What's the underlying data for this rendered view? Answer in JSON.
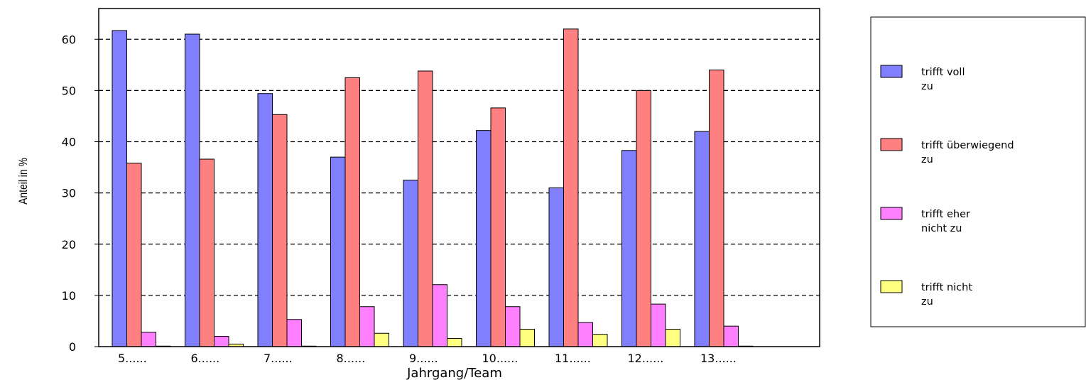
{
  "chart_data": {
    "type": "bar",
    "title": "",
    "xlabel": "Jahrgang/Team",
    "ylabel": "Anteil in %",
    "ylim": [
      0,
      66
    ],
    "yticks": [
      0,
      10,
      20,
      30,
      40,
      50,
      60
    ],
    "grid": "horizontal-dashed",
    "legend_position": "right",
    "categories": [
      "5......",
      "6......",
      "7......",
      "8......",
      "9......",
      "10......",
      "11......",
      "12......",
      "13......"
    ],
    "series": [
      {
        "name": [
          "trifft voll",
          "zu"
        ],
        "color": "#8080ff",
        "values": [
          61.7,
          61.0,
          49.4,
          37.0,
          32.5,
          42.2,
          31.0,
          38.3,
          42.0
        ]
      },
      {
        "name": [
          "trifft überwiegend",
          "zu"
        ],
        "color": "#ff8080",
        "values": [
          35.8,
          36.6,
          45.3,
          52.5,
          53.8,
          46.6,
          62.0,
          50.0,
          54.0
        ]
      },
      {
        "name": [
          "trifft eher",
          "nicht zu"
        ],
        "color": "#ff80ff",
        "values": [
          2.8,
          2.0,
          5.3,
          7.8,
          12.1,
          7.8,
          4.7,
          8.3,
          4.0
        ]
      },
      {
        "name": [
          "trifft nicht",
          "zu"
        ],
        "color": "#ffff80",
        "values": [
          0.1,
          0.5,
          0.1,
          2.6,
          1.6,
          3.4,
          2.4,
          3.4,
          0.1
        ]
      }
    ]
  }
}
